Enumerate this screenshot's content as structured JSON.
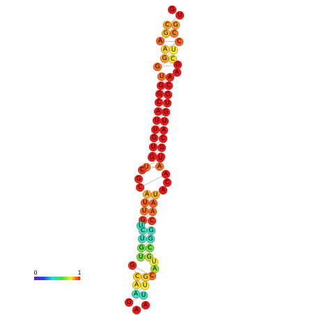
{
  "nodes": [
    {
      "label": "G",
      "color": "#e8181c"
    },
    {
      "label": "U",
      "color": "#e8181c"
    },
    {
      "label": "C",
      "color": "#f0a020"
    },
    {
      "label": "G",
      "color": "#f0a020"
    },
    {
      "label": "G",
      "color": "#f0c020"
    },
    {
      "label": "C",
      "color": "#f08020"
    },
    {
      "label": "A",
      "color": "#f06020"
    },
    {
      "label": "C",
      "color": "#f06020"
    },
    {
      "label": "A",
      "color": "#f0d020"
    },
    {
      "label": "U",
      "color": "#f0f020"
    },
    {
      "label": "G",
      "color": "#f0a020"
    },
    {
      "label": "C",
      "color": "#f0e020"
    },
    {
      "label": "G",
      "color": "#f07020"
    },
    {
      "label": "G",
      "color": "#e8181c"
    },
    {
      "label": "A",
      "color": "#e8181c"
    },
    {
      "label": "U",
      "color": "#f07020"
    },
    {
      "label": "A",
      "color": "#e8281c"
    },
    {
      "label": "G",
      "color": "#e8181c"
    },
    {
      "label": "C",
      "color": "#e8181c"
    },
    {
      "label": "G",
      "color": "#e8181c"
    },
    {
      "label": "G",
      "color": "#e8181c"
    },
    {
      "label": "C",
      "color": "#e8181c"
    },
    {
      "label": "U",
      "color": "#e8181c"
    },
    {
      "label": "A",
      "color": "#e8181c"
    },
    {
      "label": "G",
      "color": "#e8181c"
    },
    {
      "label": "U",
      "color": "#e8181c"
    },
    {
      "label": "U",
      "color": "#e8181c"
    },
    {
      "label": "U",
      "color": "#e8181c"
    },
    {
      "label": "A",
      "color": "#e8181c"
    },
    {
      "label": "G",
      "color": "#e8181c"
    },
    {
      "label": "C",
      "color": "#e8181c"
    },
    {
      "label": "U",
      "color": "#e8181c"
    },
    {
      "label": "G",
      "color": "#e8181c"
    },
    {
      "label": "A",
      "color": "#e8181c"
    },
    {
      "label": "U",
      "color": "#e8181c"
    },
    {
      "label": "G",
      "color": "#e8181c"
    },
    {
      "label": "U",
      "color": "#e8181c"
    },
    {
      "label": "U",
      "color": "#f07020"
    },
    {
      "label": "A",
      "color": "#f07020"
    },
    {
      "label": "C",
      "color": "#e8381c"
    },
    {
      "label": "G",
      "color": "#e8281c"
    },
    {
      "label": "C",
      "color": "#e8281c"
    },
    {
      "label": "A",
      "color": "#e8181c"
    },
    {
      "label": "C",
      "color": "#e8181c"
    },
    {
      "label": "A",
      "color": "#e8181c"
    },
    {
      "label": "A",
      "color": "#f0b020"
    },
    {
      "label": "U",
      "color": "#f0b020"
    },
    {
      "label": "U",
      "color": "#f06020"
    },
    {
      "label": "A",
      "color": "#f06020"
    },
    {
      "label": "U",
      "color": "#f07020"
    },
    {
      "label": "A",
      "color": "#f07020"
    },
    {
      "label": "G",
      "color": "#e8381c"
    },
    {
      "label": "C",
      "color": "#e8381c"
    },
    {
      "label": "U",
      "color": "#30e0c0"
    },
    {
      "label": "C",
      "color": "#30e0c0"
    },
    {
      "label": "G",
      "color": "#30e0c0"
    },
    {
      "label": "U",
      "color": "#30e0c0"
    },
    {
      "label": "G",
      "color": "#30e0c0"
    },
    {
      "label": "G",
      "color": "#60e040"
    },
    {
      "label": "C",
      "color": "#60e040"
    },
    {
      "label": "U",
      "color": "#70e040"
    },
    {
      "label": "G",
      "color": "#b0e030"
    },
    {
      "label": "U",
      "color": "#f0f020"
    },
    {
      "label": "A",
      "color": "#90e030"
    },
    {
      "label": "C",
      "color": "#f07020"
    },
    {
      "label": "G",
      "color": "#e8281c"
    },
    {
      "label": "C",
      "color": "#f0d020"
    },
    {
      "label": "G",
      "color": "#f0d020"
    },
    {
      "label": "A",
      "color": "#f0e020"
    },
    {
      "label": "U",
      "color": "#f0f020"
    },
    {
      "label": "A",
      "color": "#30e0c0"
    },
    {
      "label": "U",
      "color": "#30e0c0"
    },
    {
      "label": "G",
      "color": "#e8181c"
    },
    {
      "label": "A",
      "color": "#e8181c"
    },
    {
      "label": "A",
      "color": "#e8181c"
    }
  ],
  "colorbar": {
    "labels": [
      "0",
      "1"
    ]
  }
}
